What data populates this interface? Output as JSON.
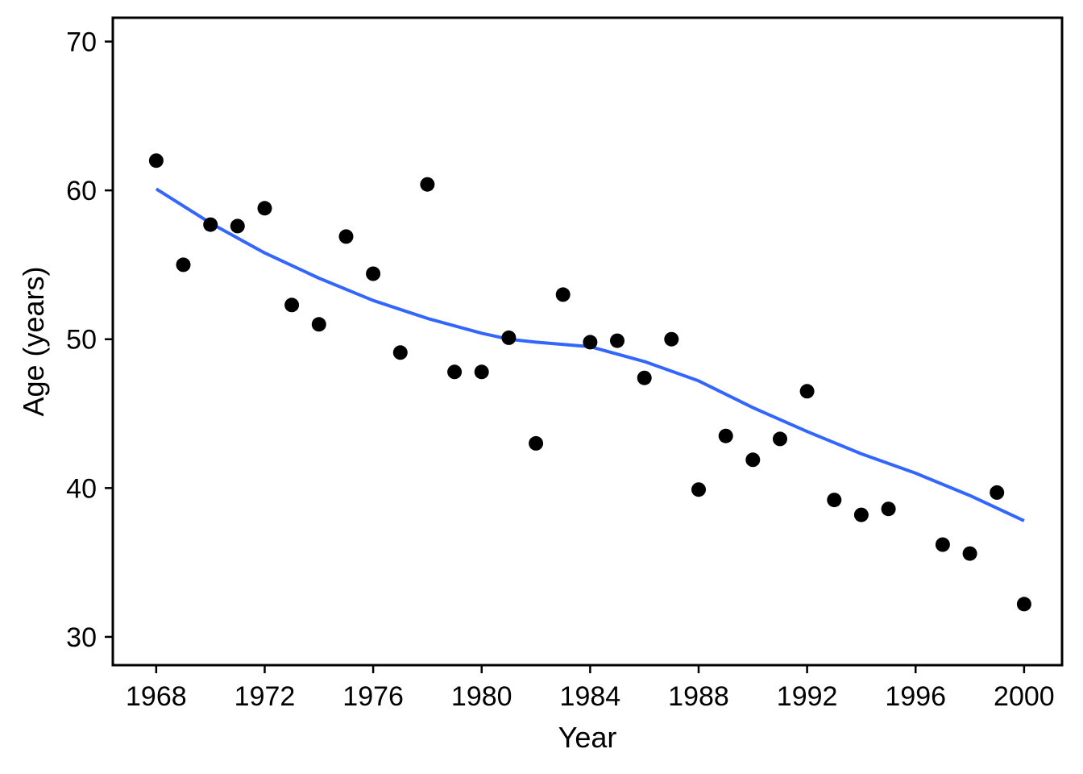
{
  "chart_data": {
    "type": "scatter",
    "title": "",
    "xlabel": "Year",
    "ylabel": "Age (years)",
    "xlim": [
      1966.4,
      2001.4
    ],
    "ylim": [
      28.1,
      71.6
    ],
    "x_ticks": [
      1968,
      1972,
      1976,
      1980,
      1984,
      1988,
      1992,
      1996,
      2000
    ],
    "y_ticks": [
      30,
      40,
      50,
      60,
      70
    ],
    "grid": false,
    "legend": "none",
    "colors": {
      "points": "#000000",
      "trend": "#3366FF",
      "axis": "#000000",
      "background": "#ffffff"
    },
    "series": [
      {
        "type": "scatter",
        "x": [
          1968,
          1969,
          1970,
          1971,
          1972,
          1973,
          1974,
          1975,
          1976,
          1977,
          1978,
          1979,
          1980,
          1981,
          1982,
          1983,
          1984,
          1985,
          1986,
          1987,
          1988,
          1989,
          1990,
          1991,
          1992,
          1993,
          1994,
          1995,
          1997,
          1998,
          1999,
          2000
        ],
        "y": [
          62.0,
          55.0,
          57.7,
          57.6,
          58.8,
          52.3,
          51.0,
          56.9,
          54.4,
          49.1,
          60.4,
          47.8,
          47.8,
          50.1,
          43.0,
          53.0,
          49.8,
          49.9,
          47.4,
          50.0,
          39.9,
          43.5,
          41.9,
          43.3,
          46.5,
          39.2,
          38.2,
          38.6,
          36.2,
          35.6,
          39.7,
          32.2
        ]
      },
      {
        "type": "line",
        "x": [
          1968,
          1970,
          1972,
          1974,
          1976,
          1978,
          1980,
          1981,
          1982,
          1984,
          1986,
          1988,
          1990,
          1992,
          1994,
          1996,
          1998,
          2000
        ],
        "y": [
          60.1,
          57.8,
          55.8,
          54.1,
          52.6,
          51.4,
          50.4,
          50.0,
          49.8,
          49.5,
          48.5,
          47.2,
          45.4,
          43.8,
          42.3,
          41.0,
          39.5,
          37.8
        ]
      }
    ]
  }
}
